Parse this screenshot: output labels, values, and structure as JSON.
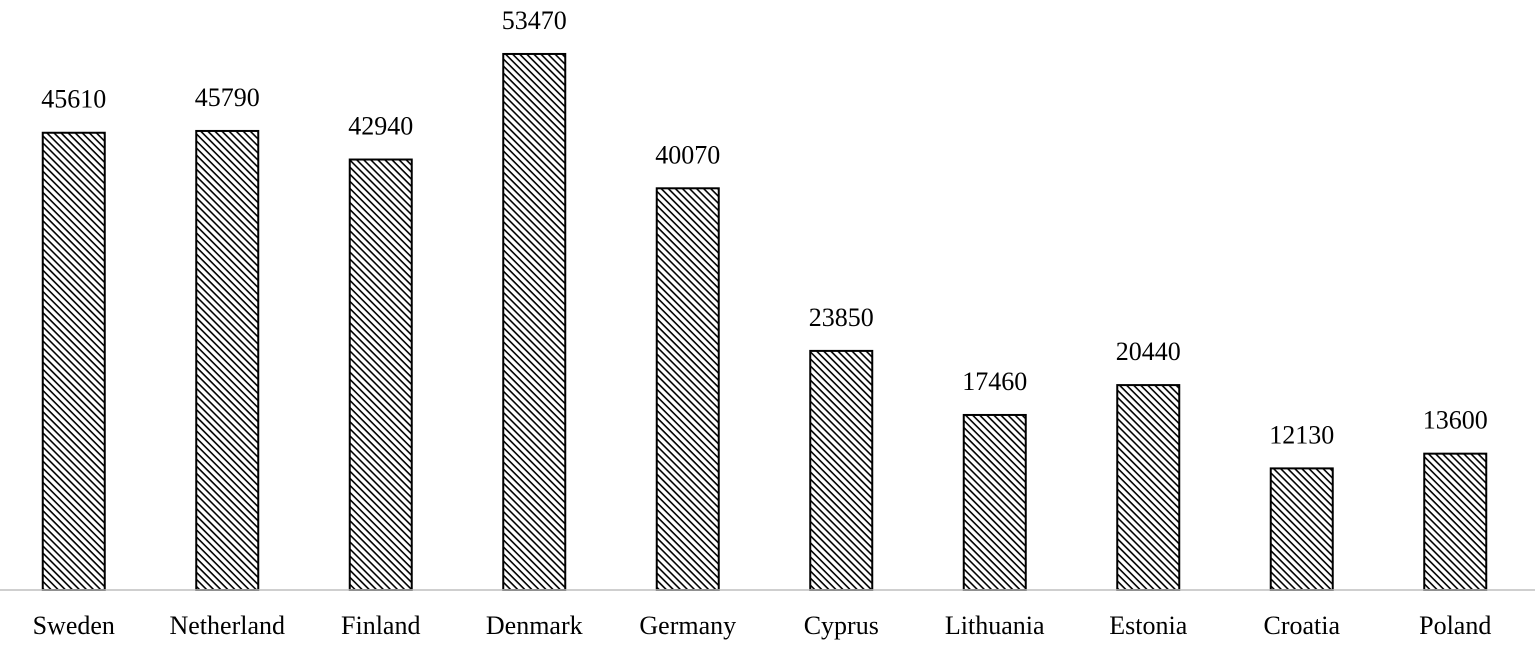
{
  "chart_data": {
    "type": "bar",
    "categories": [
      "Sweden",
      "Netherland",
      "Finland",
      "Denmark",
      "Germany",
      "Cyprus",
      "Lithuania",
      "Estonia",
      "Croatia",
      "Poland"
    ],
    "values": [
      45610,
      45790,
      42940,
      53470,
      40070,
      23850,
      17460,
      20440,
      12130,
      13600
    ],
    "color": "#000000",
    "ylim": [
      0,
      60000
    ]
  }
}
